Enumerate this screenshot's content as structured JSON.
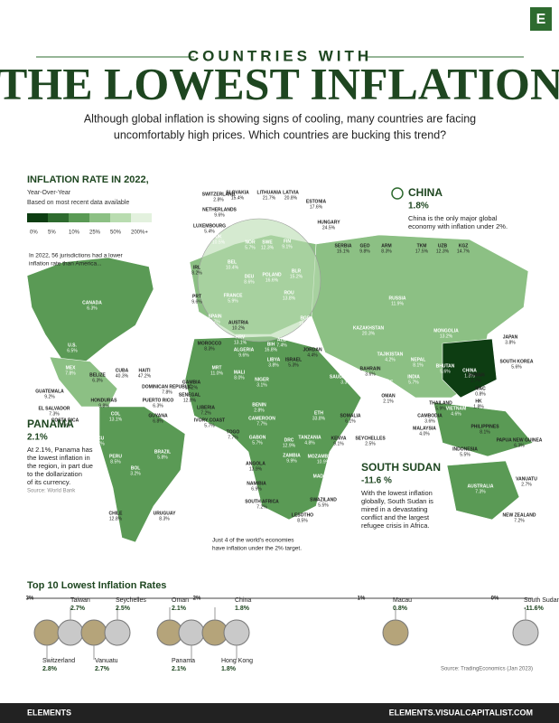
{
  "header": {
    "logo": "E",
    "kicker": "COUNTRIES WITH",
    "title": "THE LOWEST INFLATION",
    "subtitle_lines": [
      "Although global inflation is showing signs of cooling, many countries are facing",
      "uncomfortably high prices. Which countries are bucking this trend?"
    ]
  },
  "legend": {
    "title": "INFLATION RATE IN 2022,",
    "subtitle_lines": [
      "Year-Over-Year",
      "Based on most recent data available"
    ],
    "labels": [
      "0%",
      "5%",
      "10%",
      "25%",
      "50%",
      "200%+"
    ]
  },
  "notes": {
    "america": [
      "In 2022, 56 jurisdictions had a lower",
      "inflation rate than America..."
    ],
    "target": [
      "Just 4 of the world's economies",
      "have inflation under the 2% target."
    ]
  },
  "callouts": [
    {
      "name": "CHINA",
      "value": "1.8%",
      "lines": [
        "China is the only major global",
        "economy with inflation under 2%."
      ]
    },
    {
      "name": "PANAMA",
      "value": "2.1%",
      "lines": [
        "At 2.1%, Panama has",
        "the lowest inflation in",
        "the region, in part due",
        "to the dollarization",
        "of its currency."
      ],
      "source": "Source: World Bank"
    },
    {
      "name": "SOUTH SUDAN",
      "value": "-11.6 %",
      "lines": [
        "With the lowest inflation",
        "globally, South Sudan is",
        "mired in a devastating",
        "conflict and the largest",
        "refugee crisis in Africa."
      ]
    }
  ],
  "countries": [
    {
      "name": "SWITZERLAND",
      "value": "2.8%"
    },
    {
      "name": "SLOVAKIA",
      "value": "15.4%"
    },
    {
      "name": "LITHUANIA",
      "value": "21.7%"
    },
    {
      "name": "LATVIA",
      "value": "20.8%"
    },
    {
      "name": "ESTONIA",
      "value": "17.6%"
    },
    {
      "name": "NETHERLANDS",
      "value": "9.6%"
    },
    {
      "name": "LUXEMBOURG",
      "value": "5.4%"
    },
    {
      "name": "HUNGARY",
      "value": "24.5%"
    },
    {
      "name": "UK",
      "value": "10.5%"
    },
    {
      "name": "NOR",
      "value": "5.7%"
    },
    {
      "name": "SWE",
      "value": "12.3%"
    },
    {
      "name": "FIN",
      "value": "9.1%"
    },
    {
      "name": "IRL",
      "value": "8.2%"
    },
    {
      "name": "BEL",
      "value": "10.4%"
    },
    {
      "name": "DEU",
      "value": "8.6%"
    },
    {
      "name": "POLAND",
      "value": "16.6%"
    },
    {
      "name": "BLR",
      "value": "15.2%"
    },
    {
      "name": "ROU",
      "value": "13.8%"
    },
    {
      "name": "PRT",
      "value": "9.6%"
    },
    {
      "name": "FRANCE",
      "value": "5.9%"
    },
    {
      "name": "SPAIN",
      "value": "5.7%"
    },
    {
      "name": "AUSTRIA",
      "value": "10.2%"
    },
    {
      "name": "HRV",
      "value": "13.1%"
    },
    {
      "name": "BIH",
      "value": "16.8%"
    },
    {
      "name": "BGR",
      "value": "16.9%"
    },
    {
      "name": "ALB",
      "value": "7.4%"
    },
    {
      "name": "SERBIA",
      "value": "15.1%"
    },
    {
      "name": "GEO",
      "value": "9.8%"
    },
    {
      "name": "ARM",
      "value": "8.3%"
    },
    {
      "name": "TKM",
      "value": "17.5%"
    },
    {
      "name": "UZB",
      "value": "12.3%"
    },
    {
      "name": "KGZ",
      "value": "14.7%"
    },
    {
      "name": "RUSSIA",
      "value": "11.9%"
    },
    {
      "name": "KAZAKHSTAN",
      "value": "20.3%"
    },
    {
      "name": "MONGOLIA",
      "value": "13.2%"
    },
    {
      "name": "JORDAN",
      "value": "4.4%"
    },
    {
      "name": "ISRAEL",
      "value": "5.3%"
    },
    {
      "name": "SAUDI ARABIA",
      "value": "3.3%"
    },
    {
      "name": "BAHRAIN",
      "value": "3.6%"
    },
    {
      "name": "OMAN",
      "value": "2.1%"
    },
    {
      "name": "UAE",
      "value": "6.6%"
    },
    {
      "name": "TAJIKISTAN",
      "value": "4.2%"
    },
    {
      "name": "NEPAL",
      "value": "8.1%"
    },
    {
      "name": "BHUTAN",
      "value": "5.6%"
    },
    {
      "name": "INDIA",
      "value": "5.7%"
    },
    {
      "name": "CHINA",
      "value": "1.8%"
    },
    {
      "name": "JAPAN",
      "value": "3.8%"
    },
    {
      "name": "SOUTH KOREA",
      "value": "5.6%"
    },
    {
      "name": "TAIWAN",
      "value": "2.7%"
    },
    {
      "name": "MAC",
      "value": "0.8%"
    },
    {
      "name": "HK",
      "value": "1.8%"
    },
    {
      "name": "THAILAND",
      "value": "5.9%"
    },
    {
      "name": "VIETNAM",
      "value": "4.6%"
    },
    {
      "name": "CAMBODIA",
      "value": "3.6%"
    },
    {
      "name": "MALAYSIA",
      "value": "4.0%"
    },
    {
      "name": "PHILIPPINES",
      "value": "8.1%"
    },
    {
      "name": "INDONESIA",
      "value": "5.5%"
    },
    {
      "name": "PAPUA NEW GUINEA",
      "value": "6.3%"
    },
    {
      "name": "VANUATU",
      "value": "2.7%"
    },
    {
      "name": "AUSTRALIA",
      "value": "7.3%"
    },
    {
      "name": "NEW ZEALAND",
      "value": "7.2%"
    },
    {
      "name": "CANADA",
      "value": "6.3%"
    },
    {
      "name": "U.S.",
      "value": "6.5%"
    },
    {
      "name": "MEX",
      "value": "7.8%"
    },
    {
      "name": "BELIZE",
      "value": "6.3%"
    },
    {
      "name": "CUBA",
      "value": "40.3%"
    },
    {
      "name": "HAITI",
      "value": "47.2%"
    },
    {
      "name": "DOMINICAN REPUBLIC",
      "value": "7.8%"
    },
    {
      "name": "GUATEMALA",
      "value": "9.2%"
    },
    {
      "name": "EL SALVADOR",
      "value": "7.3%"
    },
    {
      "name": "HONDURAS",
      "value": "9.8%"
    },
    {
      "name": "PUERTO RICO",
      "value": "6.3%"
    },
    {
      "name": "COSTA RICA",
      "value": "7.9%"
    },
    {
      "name": "COL",
      "value": "13.1%"
    },
    {
      "name": "GUYANA",
      "value": "6.8%"
    },
    {
      "name": "ECU",
      "value": "3.7%"
    },
    {
      "name": "PERU",
      "value": "8.5%"
    },
    {
      "name": "BOL",
      "value": "3.2%"
    },
    {
      "name": "BRAZIL",
      "value": "5.8%"
    },
    {
      "name": "CHILE",
      "value": "12.8%"
    },
    {
      "name": "URUGUAY",
      "value": "8.3%"
    },
    {
      "name": "MOROCCO",
      "value": "8.3%"
    },
    {
      "name": "ALGERIA",
      "value": "9.6%"
    },
    {
      "name": "LIBYA",
      "value": "3.8%"
    },
    {
      "name": "MRT",
      "value": "11.0%"
    },
    {
      "name": "MALI",
      "value": "8.0%"
    },
    {
      "name": "NIGER",
      "value": "3.1%"
    },
    {
      "name": "GAMBIA",
      "value": "13.2%"
    },
    {
      "name": "SENEGAL",
      "value": "12.8%"
    },
    {
      "name": "LIBERIA",
      "value": "7.2%"
    },
    {
      "name": "IVORY COAST",
      "value": "5.7%"
    },
    {
      "name": "TOGO",
      "value": "7.7%"
    },
    {
      "name": "BENIN",
      "value": "2.8%"
    },
    {
      "name": "CAMEROON",
      "value": "7.7%"
    },
    {
      "name": "GABON",
      "value": "5.7%"
    },
    {
      "name": "ANGOLA",
      "value": "13.9%"
    },
    {
      "name": "NAMIBIA",
      "value": "6.9%"
    },
    {
      "name": "SOUTH AFRICA",
      "value": "7.2%"
    },
    {
      "name": "LESOTHO",
      "value": "8.5%"
    },
    {
      "name": "SWAZILAND",
      "value": "5.5%"
    },
    {
      "name": "MADAGASCAR",
      "value": "10.5%"
    },
    {
      "name": "MOZAMBIQUE",
      "value": "10.9%"
    },
    {
      "name": "ZAMBIA",
      "value": "9.9%"
    },
    {
      "name": "DRC",
      "value": "12.9%"
    },
    {
      "name": "TANZANIA",
      "value": "4.8%"
    },
    {
      "name": "KENYA",
      "value": "9.1%"
    },
    {
      "name": "ETH",
      "value": "33.8%"
    },
    {
      "name": "SOMALIA",
      "value": "6.1%"
    },
    {
      "name": "SEYCHELLES",
      "value": "2.5%"
    }
  ],
  "top10": {
    "title": "Top 10 Lowest Inflation Rates",
    "scale": [
      "3%",
      "2%",
      "1%",
      "0%"
    ],
    "items": [
      {
        "name": "Switzerland",
        "value": "2.8%"
      },
      {
        "name": "Taiwan",
        "value": "2.7%"
      },
      {
        "name": "Vanuatu",
        "value": "2.7%"
      },
      {
        "name": "Seychelles",
        "value": "2.5%"
      },
      {
        "name": "Oman",
        "value": "2.1%"
      },
      {
        "name": "Panama",
        "value": "2.1%"
      },
      {
        "name": "China",
        "value": "1.8%"
      },
      {
        "name": "Hong Kong",
        "value": "1.8%"
      },
      {
        "name": "Macau",
        "value": "0.8%"
      },
      {
        "name": "South Sudan",
        "value": "-11.6%"
      }
    ],
    "source": "Source: TradingEconomics (Jan 2023)"
  },
  "footer": {
    "brand": "ELEMENTS",
    "url": "ELEMENTS.VISUALCAPITALIST.COM"
  }
}
